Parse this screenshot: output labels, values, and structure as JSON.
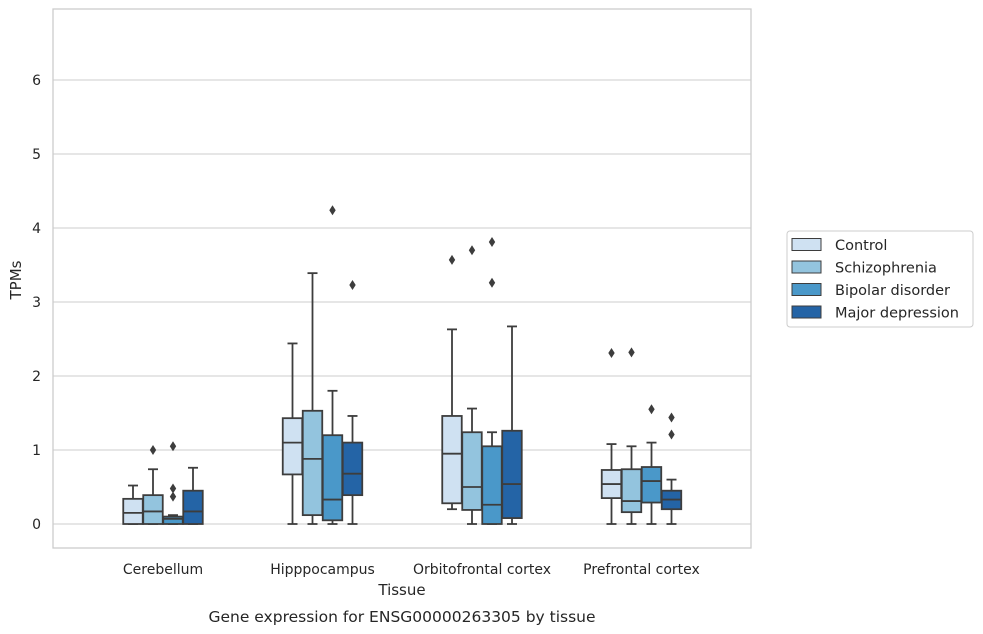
{
  "chart_data": {
    "type": "boxplot",
    "title": "Gene expression for ENSG00000263305 by tissue",
    "xlabel": "Tissue",
    "ylabel": "TPMs",
    "ylim": [
      -0.32,
      6.95
    ],
    "yticks": [
      0,
      1,
      2,
      3,
      4,
      5,
      6
    ],
    "grid": "horizontal",
    "legend_position": "right",
    "categories": [
      "Cerebellum",
      "Hipppocampus",
      "Orbitofrontal cortex",
      "Prefrontal cortex"
    ],
    "series": [
      {
        "name": "Control",
        "color": "#cfe1f2",
        "boxes": [
          {
            "whislo": 0.0,
            "q1": 0.0,
            "med": 0.15,
            "q3": 0.34,
            "whishi": 0.52,
            "fliers": []
          },
          {
            "whislo": 0.0,
            "q1": 0.67,
            "med": 1.1,
            "q3": 1.43,
            "whishi": 2.44,
            "fliers": []
          },
          {
            "whislo": 0.2,
            "q1": 0.28,
            "med": 0.95,
            "q3": 1.46,
            "whishi": 2.63,
            "fliers": [
              3.57
            ]
          },
          {
            "whislo": 0.0,
            "q1": 0.35,
            "med": 0.54,
            "q3": 0.73,
            "whishi": 1.08,
            "fliers": [
              2.31
            ]
          }
        ]
      },
      {
        "name": "Schizophrenia",
        "color": "#93c4de",
        "boxes": [
          {
            "whislo": 0.0,
            "q1": 0.0,
            "med": 0.17,
            "q3": 0.39,
            "whishi": 0.74,
            "fliers": [
              1.0
            ]
          },
          {
            "whislo": 0.0,
            "q1": 0.12,
            "med": 0.88,
            "q3": 1.53,
            "whishi": 3.39,
            "fliers": []
          },
          {
            "whislo": 0.0,
            "q1": 0.19,
            "med": 0.5,
            "q3": 1.24,
            "whishi": 1.56,
            "fliers": [
              3.7
            ]
          },
          {
            "whislo": 0.0,
            "q1": 0.16,
            "med": 0.31,
            "q3": 0.74,
            "whishi": 1.05,
            "fliers": [
              2.32
            ]
          }
        ]
      },
      {
        "name": "Bipolar disorder",
        "color": "#4a98c9",
        "boxes": [
          {
            "whislo": 0.0,
            "q1": 0.0,
            "med": 0.07,
            "q3": 0.1,
            "whishi": 0.12,
            "fliers": [
              0.37,
              0.48,
              1.05
            ]
          },
          {
            "whislo": 0.0,
            "q1": 0.05,
            "med": 0.33,
            "q3": 1.2,
            "whishi": 1.8,
            "fliers": [
              4.24
            ]
          },
          {
            "whislo": 0.0,
            "q1": 0.0,
            "med": 0.26,
            "q3": 1.05,
            "whishi": 1.24,
            "fliers": [
              3.26,
              3.81
            ]
          },
          {
            "whislo": 0.0,
            "q1": 0.29,
            "med": 0.58,
            "q3": 0.77,
            "whishi": 1.1,
            "fliers": [
              1.55
            ]
          }
        ]
      },
      {
        "name": "Major depression",
        "color": "#2464a6",
        "boxes": [
          {
            "whislo": 0.0,
            "q1": 0.0,
            "med": 0.17,
            "q3": 0.45,
            "whishi": 0.76,
            "fliers": []
          },
          {
            "whislo": 0.0,
            "q1": 0.39,
            "med": 0.68,
            "q3": 1.1,
            "whishi": 1.46,
            "fliers": [
              3.23
            ]
          },
          {
            "whislo": 0.0,
            "q1": 0.08,
            "med": 0.54,
            "q3": 1.26,
            "whishi": 2.67,
            "fliers": []
          },
          {
            "whislo": 0.0,
            "q1": 0.2,
            "med": 0.33,
            "q3": 0.45,
            "whishi": 0.6,
            "fliers": [
              1.21,
              1.44
            ]
          }
        ]
      }
    ]
  },
  "colors": {
    "box_edge": "#3d3d3d",
    "grid": "#cccccc",
    "axes_frame": "#cccccc",
    "text": "#262626"
  }
}
